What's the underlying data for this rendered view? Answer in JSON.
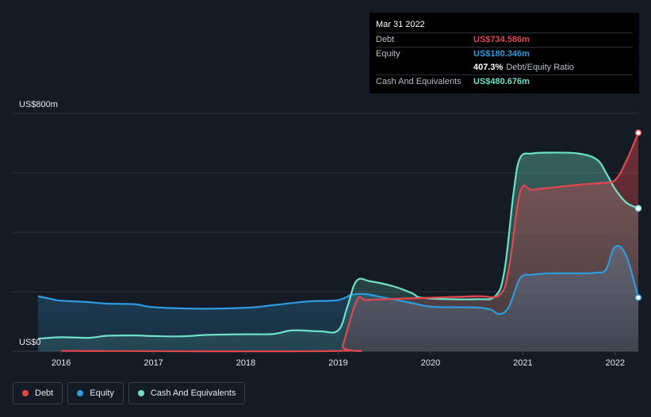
{
  "chart_data": {
    "type": "area",
    "y_top_label": "US$800m",
    "y_bottom_label": "US$0",
    "ylim": [
      0,
      800
    ],
    "xlim": [
      2015.75,
      2022.25
    ],
    "x_ticks": [
      {
        "value": 2016,
        "label": "2016"
      },
      {
        "value": 2017,
        "label": "2017"
      },
      {
        "value": 2018,
        "label": "2018"
      },
      {
        "value": 2019,
        "label": "2019"
      },
      {
        "value": 2020,
        "label": "2020"
      },
      {
        "value": 2021,
        "label": "2021"
      },
      {
        "value": 2022,
        "label": "2022"
      }
    ],
    "gridlines": [
      0,
      200,
      400,
      600,
      800
    ],
    "series": [
      {
        "name": "Debt",
        "color": "#e0484e",
        "points": [
          [
            2016.0,
            1
          ],
          [
            2019.0,
            1
          ],
          [
            2019.05,
            20
          ],
          [
            2019.2,
            170
          ],
          [
            2019.3,
            172
          ],
          [
            2019.5,
            175
          ],
          [
            2020.0,
            180
          ],
          [
            2020.5,
            185
          ],
          [
            2020.75,
            190
          ],
          [
            2020.85,
            280
          ],
          [
            2020.97,
            535
          ],
          [
            2021.1,
            543
          ],
          [
            2021.3,
            550
          ],
          [
            2021.6,
            560
          ],
          [
            2021.85,
            566
          ],
          [
            2022.0,
            576
          ],
          [
            2022.12,
            640
          ],
          [
            2022.25,
            734.586
          ]
        ],
        "end_value": 734.586
      },
      {
        "name": "Equity",
        "color": "#2f9bde",
        "points": [
          [
            2015.75,
            185
          ],
          [
            2015.9,
            175
          ],
          [
            2016.0,
            170
          ],
          [
            2016.3,
            165
          ],
          [
            2016.5,
            160
          ],
          [
            2016.8,
            158
          ],
          [
            2017.0,
            148
          ],
          [
            2017.5,
            143
          ],
          [
            2017.9,
            145
          ],
          [
            2018.1,
            148
          ],
          [
            2018.3,
            155
          ],
          [
            2018.5,
            162
          ],
          [
            2018.7,
            168
          ],
          [
            2019.0,
            172
          ],
          [
            2019.15,
            190
          ],
          [
            2019.3,
            192
          ],
          [
            2019.5,
            180
          ],
          [
            2019.75,
            165
          ],
          [
            2020.0,
            150
          ],
          [
            2020.25,
            148
          ],
          [
            2020.5,
            147
          ],
          [
            2020.65,
            140
          ],
          [
            2020.75,
            125
          ],
          [
            2020.85,
            150
          ],
          [
            2020.97,
            245
          ],
          [
            2021.1,
            257
          ],
          [
            2021.3,
            262
          ],
          [
            2021.6,
            262
          ],
          [
            2021.8,
            264
          ],
          [
            2021.9,
            275
          ],
          [
            2022.0,
            352
          ],
          [
            2022.12,
            320
          ],
          [
            2022.25,
            180.346
          ]
        ],
        "end_value": 180.346
      },
      {
        "name": "Cash And Equivalents",
        "color": "#6fe0c8",
        "points": [
          [
            2015.75,
            42
          ],
          [
            2016.0,
            47
          ],
          [
            2016.3,
            45
          ],
          [
            2016.5,
            52
          ],
          [
            2016.8,
            53
          ],
          [
            2017.0,
            51
          ],
          [
            2017.3,
            50
          ],
          [
            2017.6,
            55
          ],
          [
            2018.0,
            57
          ],
          [
            2018.3,
            58
          ],
          [
            2018.5,
            70
          ],
          [
            2018.8,
            67
          ],
          [
            2019.0,
            70
          ],
          [
            2019.1,
            150
          ],
          [
            2019.2,
            237
          ],
          [
            2019.35,
            235
          ],
          [
            2019.6,
            218
          ],
          [
            2019.8,
            195
          ],
          [
            2019.9,
            180
          ],
          [
            2020.2,
            175
          ],
          [
            2020.5,
            175
          ],
          [
            2020.7,
            185
          ],
          [
            2020.8,
            270
          ],
          [
            2020.9,
            535
          ],
          [
            2020.97,
            650
          ],
          [
            2021.1,
            665
          ],
          [
            2021.3,
            668
          ],
          [
            2021.6,
            665
          ],
          [
            2021.8,
            645
          ],
          [
            2021.9,
            600
          ],
          [
            2022.0,
            545
          ],
          [
            2022.12,
            500
          ],
          [
            2022.25,
            480.676
          ]
        ],
        "end_value": 480.676
      }
    ],
    "tooltip": {
      "date": "Mar 31 2022",
      "rows": [
        {
          "label": "Debt",
          "value": "US$734.586m",
          "color": "#e0484e"
        },
        {
          "label": "Equity",
          "value": "US$180.346m",
          "color": "#2f9bde"
        },
        {
          "label": "",
          "value": "407.3%",
          "suffix": "Debt/Equity Ratio",
          "color": "#ffffff"
        },
        {
          "label": "Cash And Equivalents",
          "value": "US$480.676m",
          "color": "#6fe0c8"
        }
      ]
    }
  },
  "legend": [
    {
      "label": "Debt",
      "color": "#e0484e"
    },
    {
      "label": "Equity",
      "color": "#2f9bde"
    },
    {
      "label": "Cash And Equivalents",
      "color": "#6fe0c8"
    }
  ]
}
